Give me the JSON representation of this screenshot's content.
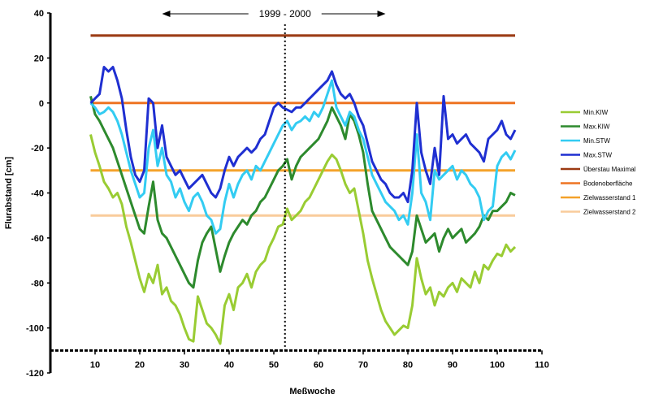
{
  "chart_data": {
    "type": "line",
    "xlabel": "Meßwoche",
    "ylabel": "Flurabstand [cm]",
    "xlim": [
      0,
      110
    ],
    "ylim": [
      -120,
      40
    ],
    "x_ticks": [
      10,
      20,
      30,
      40,
      50,
      60,
      70,
      80,
      90,
      100,
      110
    ],
    "y_ticks": [
      40,
      20,
      0,
      -20,
      -40,
      -60,
      -80,
      -100,
      -120
    ],
    "grid": false,
    "legend_position": "right",
    "annotation": {
      "text": "1999 - 2000",
      "marker_x": 52.5,
      "arrow_span": [
        25,
        75
      ]
    },
    "series": [
      {
        "name": "Min.KIW",
        "color": "#99cc33",
        "x": [
          9,
          10,
          11,
          12,
          13,
          14,
          15,
          16,
          17,
          18,
          19,
          20,
          21,
          22,
          23,
          24,
          25,
          26,
          27,
          28,
          29,
          30,
          31,
          32,
          33,
          34,
          35,
          36,
          37,
          38,
          39,
          40,
          41,
          42,
          43,
          44,
          45,
          46,
          47,
          48,
          49,
          50,
          51,
          52,
          53,
          54,
          55,
          56,
          57,
          58,
          59,
          60,
          61,
          62,
          63,
          64,
          65,
          66,
          67,
          68,
          69,
          70,
          71,
          72,
          73,
          74,
          75,
          76,
          77,
          78,
          79,
          80,
          81,
          82,
          83,
          84,
          85,
          86,
          87,
          88,
          89,
          90,
          91,
          92,
          93,
          94,
          95,
          96,
          97,
          98,
          99,
          100,
          101,
          102,
          103,
          104
        ],
        "y": [
          -14,
          -22,
          -28,
          -35,
          -38,
          -42,
          -40,
          -45,
          -55,
          -62,
          -70,
          -78,
          -84,
          -76,
          -80,
          -72,
          -85,
          -82,
          -88,
          -90,
          -94,
          -100,
          -105,
          -106,
          -86,
          -92,
          -98,
          -100,
          -103,
          -107,
          -90,
          -85,
          -92,
          -82,
          -80,
          -76,
          -82,
          -75,
          -72,
          -70,
          -64,
          -60,
          -55,
          -54,
          -47,
          -52,
          -50,
          -48,
          -44,
          -42,
          -38,
          -34,
          -30,
          -26,
          -23,
          -25,
          -30,
          -36,
          -40,
          -38,
          -48,
          -58,
          -70,
          -78,
          -85,
          -92,
          -97,
          -100,
          -103,
          -101,
          -99,
          -100,
          -90,
          -69,
          -78,
          -85,
          -82,
          -90,
          -84,
          -86,
          -82,
          -80,
          -84,
          -78,
          -80,
          -82,
          -75,
          -80,
          -72,
          -74,
          -70,
          -67,
          -68,
          -63,
          -66,
          -64
        ]
      },
      {
        "name": "Max.KIW",
        "color": "#2d8a2d",
        "x": [
          9,
          10,
          11,
          12,
          13,
          14,
          15,
          16,
          17,
          18,
          19,
          20,
          21,
          22,
          23,
          24,
          25,
          26,
          27,
          28,
          29,
          30,
          31,
          32,
          33,
          34,
          35,
          36,
          37,
          38,
          39,
          40,
          41,
          42,
          43,
          44,
          45,
          46,
          47,
          48,
          49,
          50,
          51,
          52,
          53,
          54,
          55,
          56,
          57,
          58,
          59,
          60,
          61,
          62,
          63,
          64,
          65,
          66,
          67,
          68,
          69,
          70,
          71,
          72,
          73,
          74,
          75,
          76,
          77,
          78,
          79,
          80,
          81,
          82,
          83,
          84,
          85,
          86,
          87,
          88,
          89,
          90,
          91,
          92,
          93,
          94,
          95,
          96,
          97,
          98,
          99,
          100,
          101,
          102,
          103,
          104
        ],
        "y": [
          3,
          -5,
          -8,
          -12,
          -16,
          -20,
          -26,
          -32,
          -38,
          -44,
          -50,
          -56,
          -58,
          -46,
          -35,
          -52,
          -58,
          -60,
          -64,
          -68,
          -72,
          -76,
          -80,
          -82,
          -70,
          -62,
          -58,
          -55,
          -65,
          -75,
          -68,
          -62,
          -58,
          -55,
          -52,
          -54,
          -50,
          -48,
          -44,
          -42,
          -38,
          -34,
          -30,
          -28,
          -25,
          -34,
          -28,
          -24,
          -22,
          -20,
          -18,
          -16,
          -12,
          -8,
          -2,
          -6,
          -10,
          -16,
          -5,
          -8,
          -14,
          -22,
          -36,
          -48,
          -52,
          -56,
          -60,
          -64,
          -66,
          -68,
          -70,
          -72,
          -66,
          -50,
          -56,
          -62,
          -60,
          -58,
          -66,
          -60,
          -56,
          -60,
          -58,
          -56,
          -62,
          -60,
          -58,
          -55,
          -50,
          -52,
          -48,
          -48,
          -46,
          -44,
          -40,
          -41
        ]
      },
      {
        "name": "Min.STW",
        "color": "#33ccf2",
        "x": [
          9,
          10,
          11,
          12,
          13,
          14,
          15,
          16,
          17,
          18,
          19,
          20,
          21,
          22,
          23,
          24,
          25,
          26,
          27,
          28,
          29,
          30,
          31,
          32,
          33,
          34,
          35,
          36,
          37,
          38,
          39,
          40,
          41,
          42,
          43,
          44,
          45,
          46,
          47,
          48,
          49,
          50,
          51,
          52,
          53,
          54,
          55,
          56,
          57,
          58,
          59,
          60,
          61,
          62,
          63,
          64,
          65,
          66,
          67,
          68,
          69,
          70,
          71,
          72,
          73,
          74,
          75,
          76,
          77,
          78,
          79,
          80,
          81,
          82,
          83,
          84,
          85,
          86,
          87,
          88,
          89,
          90,
          91,
          92,
          93,
          94,
          95,
          96,
          97,
          98,
          99,
          100,
          101,
          102,
          103,
          104
        ],
        "y": [
          0,
          -2,
          -5,
          -4,
          -2,
          -4,
          -8,
          -14,
          -22,
          -30,
          -36,
          -42,
          -40,
          -20,
          -12,
          -28,
          -20,
          -32,
          -35,
          -42,
          -38,
          -44,
          -48,
          -42,
          -40,
          -44,
          -50,
          -52,
          -58,
          -56,
          -44,
          -36,
          -42,
          -36,
          -32,
          -30,
          -34,
          -28,
          -30,
          -26,
          -22,
          -18,
          -14,
          -10,
          -8,
          -12,
          -9,
          -8,
          -6,
          -8,
          -4,
          -6,
          -2,
          4,
          10,
          -2,
          -6,
          -10,
          -4,
          -6,
          -12,
          -16,
          -24,
          -32,
          -36,
          -40,
          -44,
          -46,
          -48,
          -52,
          -50,
          -54,
          -40,
          -14,
          -40,
          -44,
          -52,
          -30,
          -34,
          -32,
          -30,
          -28,
          -34,
          -30,
          -32,
          -36,
          -38,
          -42,
          -52,
          -48,
          -46,
          -28,
          -24,
          -22,
          -25,
          -21
        ]
      },
      {
        "name": "Max.STW",
        "color": "#1f2fd1",
        "x": [
          9,
          10,
          11,
          12,
          13,
          14,
          15,
          16,
          17,
          18,
          19,
          20,
          21,
          22,
          23,
          24,
          25,
          26,
          27,
          28,
          29,
          30,
          31,
          32,
          33,
          34,
          35,
          36,
          37,
          38,
          39,
          40,
          41,
          42,
          43,
          44,
          45,
          46,
          47,
          48,
          49,
          50,
          51,
          52,
          53,
          54,
          55,
          56,
          57,
          58,
          59,
          60,
          61,
          62,
          63,
          64,
          65,
          66,
          67,
          68,
          69,
          70,
          71,
          72,
          73,
          74,
          75,
          76,
          77,
          78,
          79,
          80,
          81,
          82,
          83,
          84,
          85,
          86,
          87,
          88,
          89,
          90,
          91,
          92,
          93,
          94,
          95,
          96,
          97,
          98,
          99,
          100,
          101,
          102,
          103,
          104
        ],
        "y": [
          0,
          2,
          4,
          16,
          14,
          16,
          10,
          2,
          -12,
          -24,
          -32,
          -35,
          -30,
          2,
          0,
          -20,
          -10,
          -24,
          -28,
          -32,
          -30,
          -34,
          -38,
          -36,
          -34,
          -32,
          -36,
          -40,
          -42,
          -38,
          -30,
          -24,
          -28,
          -24,
          -22,
          -20,
          -22,
          -20,
          -16,
          -14,
          -8,
          -2,
          0,
          -2,
          -3,
          -4,
          -2,
          -2,
          0,
          2,
          4,
          6,
          8,
          10,
          14,
          8,
          4,
          2,
          4,
          0,
          -6,
          -10,
          -18,
          -26,
          -30,
          -34,
          -36,
          -40,
          -42,
          -42,
          -40,
          -44,
          -30,
          0,
          -22,
          -30,
          -36,
          -20,
          -32,
          3,
          -16,
          -14,
          -18,
          -16,
          -14,
          -18,
          -20,
          -22,
          -26,
          -16,
          -14,
          -12,
          -8,
          -14,
          -16,
          -12
        ]
      },
      {
        "name": "Überstau Maximal",
        "color": "#9b3a12",
        "x": [
          9,
          104
        ],
        "y": [
          30,
          30
        ]
      },
      {
        "name": "Bodenoberfläche",
        "color": "#ee7422",
        "x": [
          9,
          104
        ],
        "y": [
          0,
          0
        ]
      },
      {
        "name": "Zielwasserstand 1",
        "color": "#f4a22a",
        "x": [
          9,
          104
        ],
        "y": [
          -30,
          -30
        ]
      },
      {
        "name": "Zielwasserstand 2",
        "color": "#f9cc9b",
        "x": [
          9,
          104
        ],
        "y": [
          -50,
          -50
        ]
      }
    ]
  },
  "legend": {
    "items": [
      {
        "label": "Min.KIW",
        "color": "#99cc33"
      },
      {
        "label": "Max.KIW",
        "color": "#2d8a2d"
      },
      {
        "label": "Min.STW",
        "color": "#33ccf2"
      },
      {
        "label": "Max.STW",
        "color": "#1f2fd1"
      },
      {
        "label": "Überstau Maximal",
        "color": "#9b3a12"
      },
      {
        "label": "Bodenoberfläche",
        "color": "#ee7422"
      },
      {
        "label": "Zielwasserstand 1",
        "color": "#f4a22a"
      },
      {
        "label": "Zielwasserstand 2",
        "color": "#f9cc9b"
      }
    ]
  }
}
